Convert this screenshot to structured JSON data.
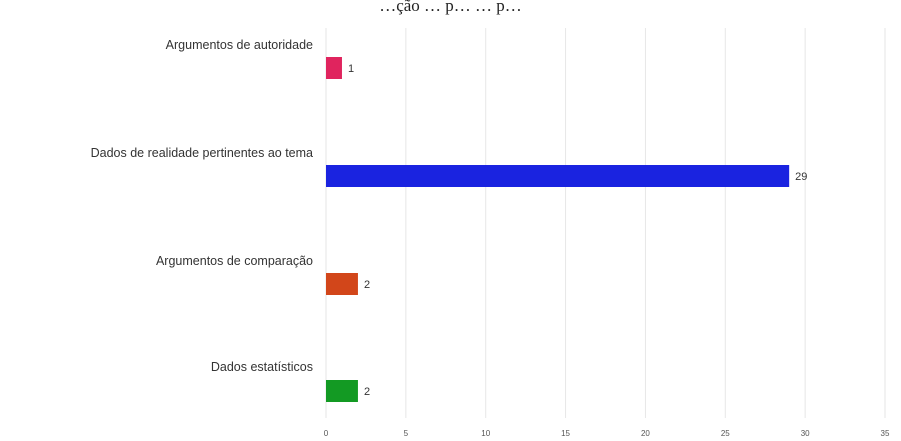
{
  "chart_data": {
    "type": "bar",
    "orientation": "horizontal",
    "title": "…ção … p… … p…",
    "categories": [
      "Argumentos de autoridade",
      "Dados de realidade pertinentes ao tema",
      "Argumentos de comparação",
      "Dados estatísticos"
    ],
    "values": [
      1,
      29,
      2,
      2
    ],
    "colors": [
      "#e0245e",
      "#1a23e0",
      "#d2461a",
      "#139a23"
    ],
    "data_labels": [
      "1",
      "29",
      "2",
      "2"
    ],
    "x_ticks": [
      "0",
      "5",
      "10",
      "15",
      "20",
      "25",
      "30",
      "35"
    ],
    "xlim": [
      0,
      35
    ],
    "grid": true,
    "legend": "none",
    "xlabel": "",
    "ylabel": ""
  }
}
